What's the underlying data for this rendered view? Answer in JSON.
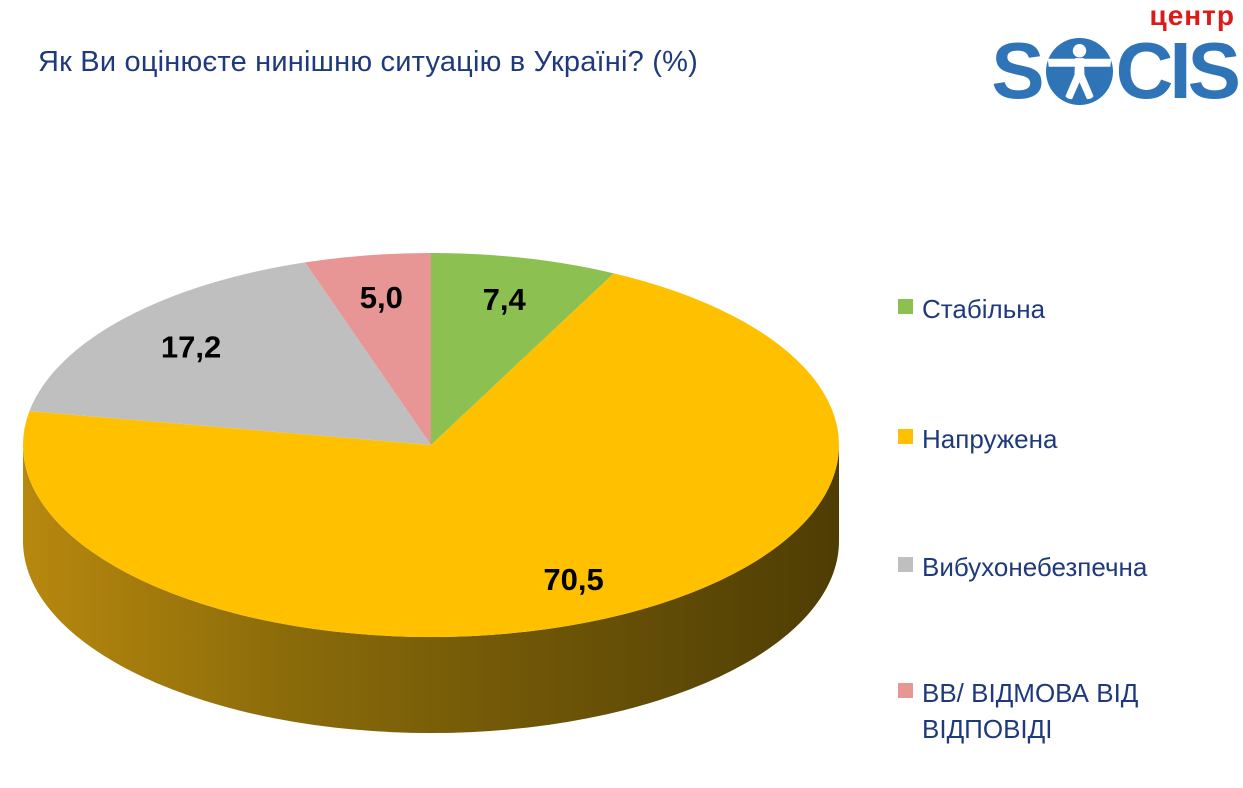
{
  "header": {
    "title": "Як Ви оцінюєте нинішню ситуацію в Україні? (%)",
    "logo": {
      "brand_left": "S",
      "brand_right": "CIS",
      "brand_full": "SOCIS",
      "tagline": "центр",
      "brand_color": "#2E74B6",
      "tagline_color": "#DC1A18"
    }
  },
  "chart_data": {
    "type": "pie",
    "title": "Як Ви оцінюєте нинішню ситуацію в Україні? (%)",
    "unit": "%",
    "effect": "3d",
    "start_angle_deg": 0,
    "direction": "clockwise",
    "legend_position": "right",
    "label_color": "#000000",
    "legend_text_color": "#1F3A7C",
    "side_gradient": [
      "#B8880E",
      "#8A6B0A",
      "#6B5307",
      "#4E3D04"
    ],
    "slices": [
      {
        "label": "Стабільна",
        "value": 7.4,
        "display": "7,4",
        "color": "#8CC152"
      },
      {
        "label": "Напружена",
        "value": 70.5,
        "display": "70,5",
        "color": "#FFC000"
      },
      {
        "label": "Вибухонебезпечна",
        "value": 17.2,
        "display": "17,2",
        "color": "#BFBFBF"
      },
      {
        "label": "ВВ/ ВІДМОВА ВІД ВІДПОВІДІ",
        "value": 5.0,
        "display": "5,0",
        "color": "#E89695"
      }
    ]
  }
}
